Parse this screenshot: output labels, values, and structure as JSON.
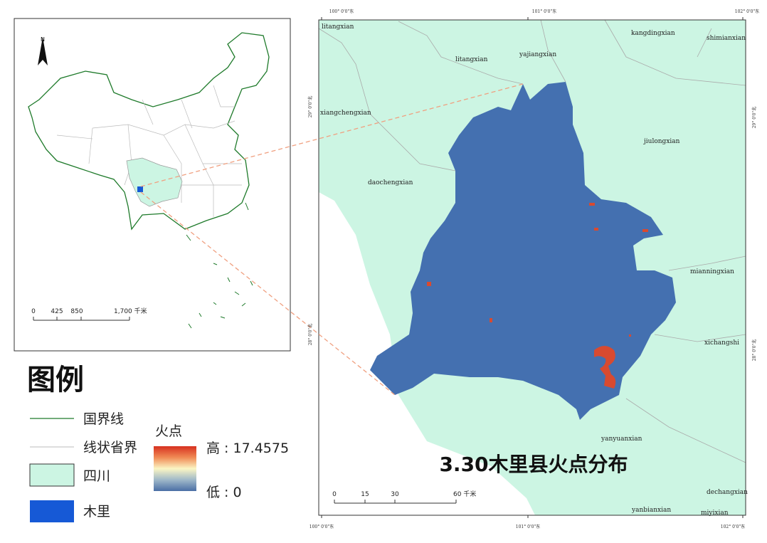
{
  "inset_map": {
    "north": "N",
    "scale_labels": [
      "0",
      "425",
      "850",
      "1,700 千米"
    ]
  },
  "legend": {
    "title": "图例",
    "items": [
      "国界线",
      "线状省界",
      "四川",
      "木里"
    ],
    "fire": {
      "title": "火点",
      "high": "高 : 17.4575",
      "low": "低 : 0"
    }
  },
  "main_map": {
    "title": "3.30木里县火点分布",
    "scale_labels": [
      "0",
      "15",
      "30",
      "60 千米"
    ],
    "places": [
      "litangxian",
      "litangxian",
      "yajiangxian",
      "kangdingxian",
      "shimianxian",
      "xiangchengxian",
      "jiulongxian",
      "daochengxian",
      "mianningxian",
      "xichangshi",
      "yanyuanxian",
      "dechangxian",
      "yanbianxian",
      "miyixian"
    ],
    "grid_labels": {
      "top": [
        "100° 0'0\"东",
        "101° 0'0\"东",
        "102° 0'0\"东"
      ],
      "bottom": [
        "100° 0'0\"东",
        "101° 0'0\"东",
        "102° 0'0\"东"
      ],
      "left": [
        "29° 0'0\"北",
        "28° 0'0\"北"
      ],
      "right": [
        "29° 0'0\"北",
        "28° 0'0\"北"
      ]
    }
  }
}
